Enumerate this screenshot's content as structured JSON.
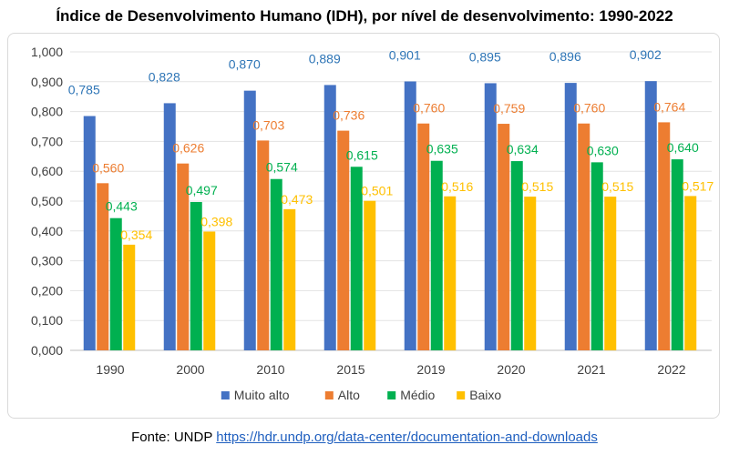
{
  "title": "Índice de Desenvolvimento Humano (IDH), por nível de desenvolvimento: 1990-2022",
  "source": {
    "prefix": "Fonte: UNDP",
    "link_text": "https://hdr.undp.org/data-center/documentation-and-downloads"
  },
  "chart_data": {
    "type": "bar",
    "title": "Índice de Desenvolvimento Humano (IDH), por nível de desenvolvimento: 1990-2022",
    "xlabel": "",
    "ylabel": "",
    "ylim": [
      0,
      1
    ],
    "y_ticks": [
      "0,000",
      "0,100",
      "0,200",
      "0,300",
      "0,400",
      "0,500",
      "0,600",
      "0,700",
      "0,800",
      "0,900",
      "1,000"
    ],
    "grid": true,
    "legend_position": "bottom",
    "categories": [
      "1990",
      "2000",
      "2010",
      "2015",
      "2019",
      "2020",
      "2021",
      "2022"
    ],
    "series": [
      {
        "name": "Muito alto",
        "color": "#4472c4",
        "values": [
          0.785,
          0.828,
          0.87,
          0.889,
          0.901,
          0.895,
          0.896,
          0.902
        ],
        "labels": [
          "0,785",
          "0,828",
          "0,870",
          "0,889",
          "0,901",
          "0,895",
          "0,896",
          "0,902"
        ],
        "label_color": "#2e75b6"
      },
      {
        "name": "Alto",
        "color": "#ed7d31",
        "values": [
          0.56,
          0.626,
          0.703,
          0.736,
          0.76,
          0.759,
          0.76,
          0.764
        ],
        "labels": [
          "0,560",
          "0,626",
          "0,703",
          "0,736",
          "0,760",
          "0,759",
          "0,760",
          "0,764"
        ],
        "label_color": "#ed7d31"
      },
      {
        "name": "Médio",
        "color": "#00b050",
        "values": [
          0.443,
          0.497,
          0.574,
          0.615,
          0.635,
          0.634,
          0.63,
          0.64
        ],
        "labels": [
          "0,443",
          "0,497",
          "0,574",
          "0,615",
          "0,635",
          "0,634",
          "0,630",
          "0,640"
        ],
        "label_color": "#00b050"
      },
      {
        "name": "Baixo",
        "color": "#ffc000",
        "values": [
          0.354,
          0.398,
          0.473,
          0.501,
          0.516,
          0.515,
          0.515,
          0.517
        ],
        "labels": [
          "0,354",
          "0,398",
          "0,473",
          "0,501",
          "0,516",
          "0,515",
          "0,515",
          "0,517"
        ],
        "label_color": "#ffc000"
      }
    ]
  }
}
